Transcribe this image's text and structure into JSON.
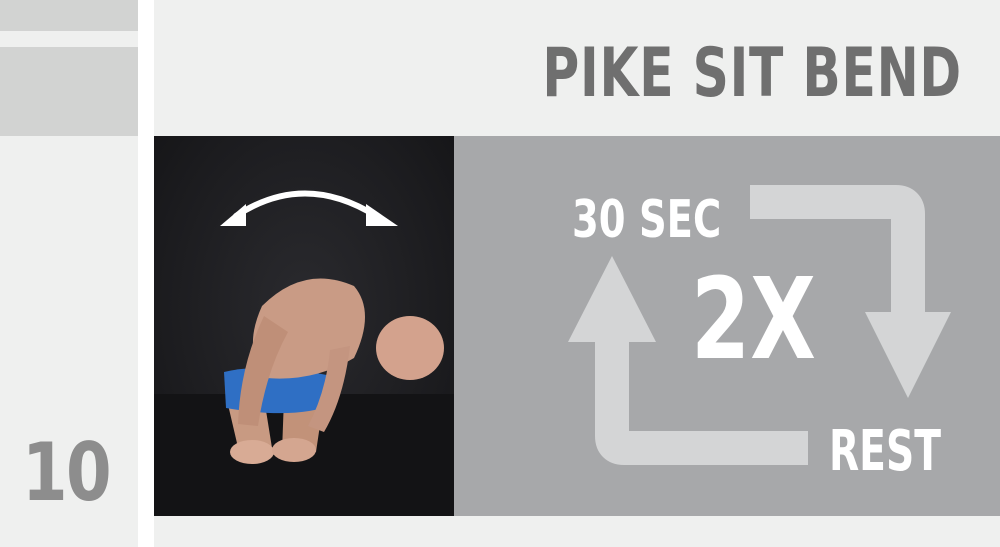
{
  "step": {
    "number": "10"
  },
  "exercise": {
    "title": "PIKE SIT BEND"
  },
  "photo": {
    "icon": "double-headed-arc-arrow-icon"
  },
  "reps": {
    "work_time": "30 SEC",
    "rounds": "2X",
    "rest_label": "REST",
    "icon": "cycle-arrows-icon"
  },
  "colors": {
    "sidebar_bg": "#eff0ef",
    "sidebar_bar": "#d2d3d2",
    "number_text": "#8d8d8d",
    "title_text": "#6f6f6f",
    "panel_bg": "#a7a8aa",
    "arrow": "#d4d5d6",
    "photo_bg": "#1b1b1e"
  }
}
